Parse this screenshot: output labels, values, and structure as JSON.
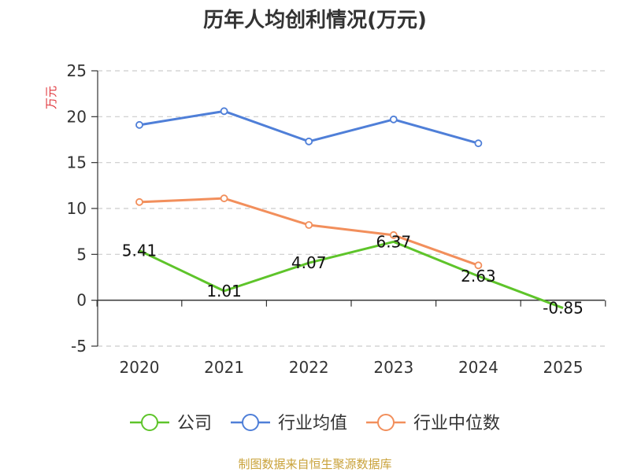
{
  "chart_data": {
    "type": "line",
    "title": "历年人均创利情况(万元)",
    "ylabel": "万元",
    "xlabel": "",
    "categories": [
      "2020",
      "2021",
      "2022",
      "2023",
      "2024",
      "2025"
    ],
    "ylim": [
      -5,
      25
    ],
    "yticks": [
      25,
      20,
      15,
      10,
      5,
      0,
      -5
    ],
    "grid": true,
    "legend_position": "bottom",
    "series": [
      {
        "name": "公司",
        "color": "#5ec42a",
        "values": [
          5.41,
          1.01,
          4.07,
          6.37,
          2.63,
          -0.85
        ],
        "labels": [
          "5.41",
          "1.01",
          "4.07",
          "6.37",
          "2.63",
          "-0.85"
        ],
        "markers": false
      },
      {
        "name": "行业均值",
        "color": "#4f7fd8",
        "values": [
          19.1,
          20.6,
          17.3,
          19.7,
          17.1,
          null
        ],
        "markers": true
      },
      {
        "name": "行业中位数",
        "color": "#f28f5c",
        "values": [
          10.7,
          11.1,
          8.2,
          7.1,
          3.8,
          null
        ],
        "markers": true
      }
    ],
    "source": "制图数据来自恒生聚源数据库"
  },
  "colors": {
    "axis": "#333333",
    "grid": "#cccccc",
    "ylabel": "#e0383e",
    "source": "#c9a23a"
  }
}
